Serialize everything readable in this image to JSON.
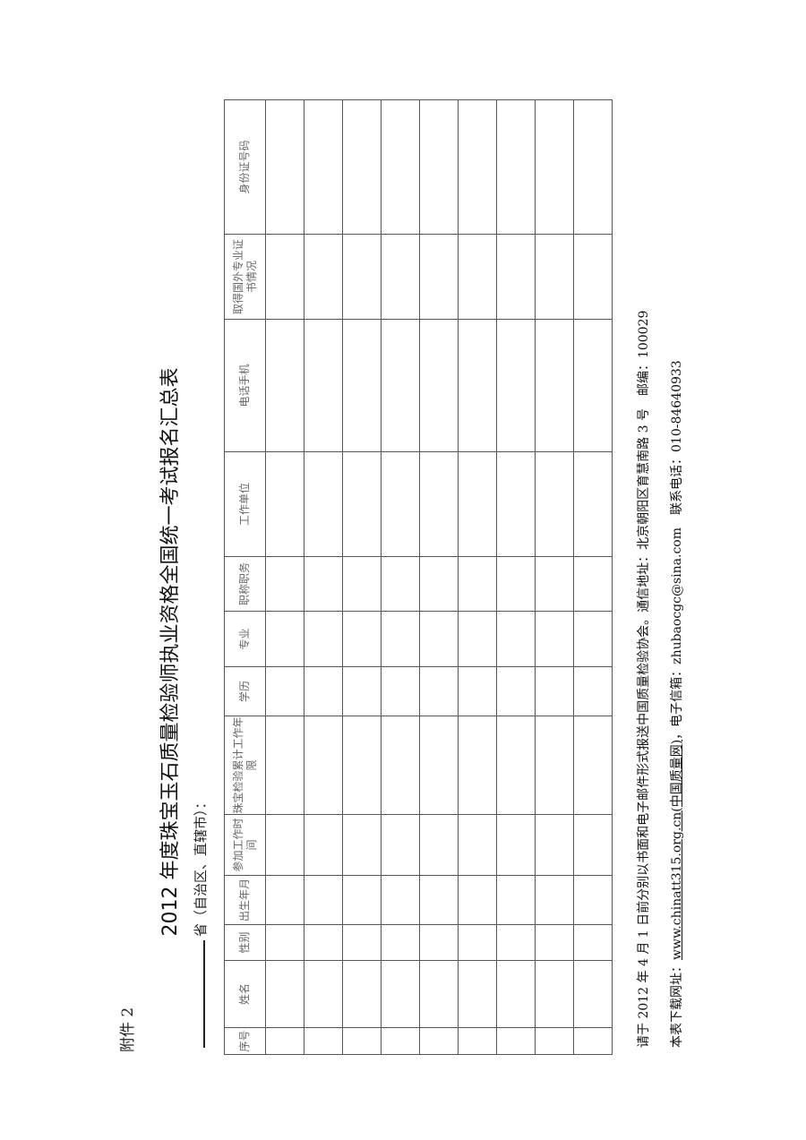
{
  "attachment_label": "附件 2",
  "title": "2012 年度珠宝玉石质量检验师执业资格全国统一考试报名汇总表",
  "province_line": "省（自治区、直辖市）：",
  "table": {
    "headers": [
      "序号",
      "姓名",
      "性别",
      "出生年月",
      "参加工作时间",
      "珠宝检验累计工作年限",
      "学历",
      "专业",
      "职称职务",
      "工作单位",
      "电话手机",
      "取得国外专业证书情况",
      "身份证号码"
    ],
    "empty_rows": 9
  },
  "footer": {
    "line1": "请于 2012 年 4 月 1 日前分别以书面和电子邮件形式报送中国质量检验协会。通信地址：北京朝阳区育慧南路 3 号　邮编：100029",
    "download_label": "本表下载网址：",
    "download_url": "www.chinatt315.org.cn(中国质量网)",
    "email_label": "，电子信箱：",
    "email": "zhubaocgc@sina.com",
    "phone_label": "　联系电话：",
    "phone": "010-84640933"
  }
}
